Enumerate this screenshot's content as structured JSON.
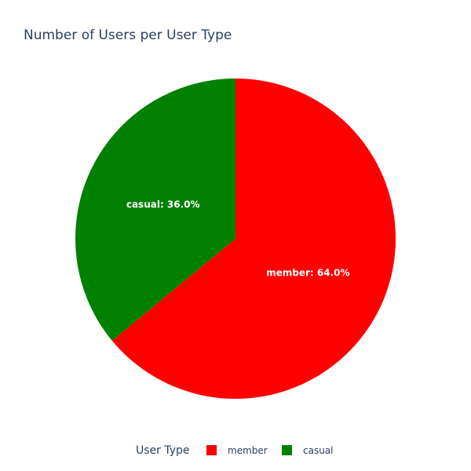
{
  "chart_data": {
    "type": "pie",
    "title": "Number of Users per User Type",
    "legend_title": "User Type",
    "legend_position": "bottom-center",
    "slices": [
      {
        "label": "member",
        "value": 64.0,
        "percent_text": "64.0%",
        "color": "#ff0000"
      },
      {
        "label": "casual",
        "value": 36.0,
        "percent_text": "36.0%",
        "color": "#008000"
      }
    ],
    "direction": "clockwise",
    "start_angle": "12 o'clock"
  }
}
